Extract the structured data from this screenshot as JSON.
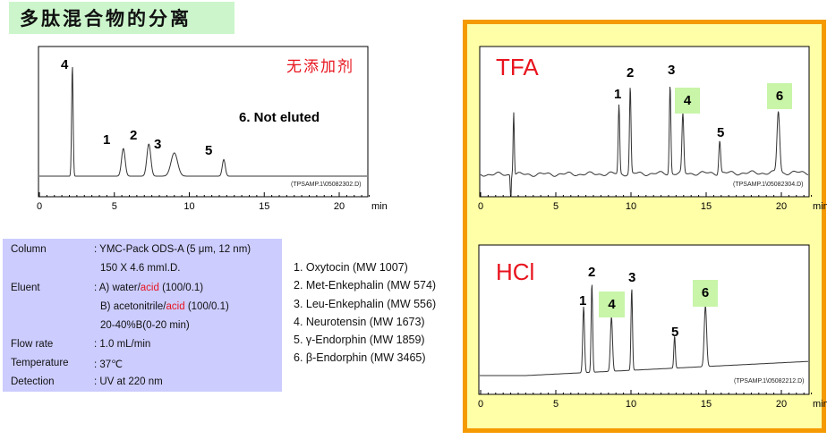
{
  "title": "多肽混合物的分离",
  "colors": {
    "title_bg": "#ccf5cc",
    "frame_orange": "#f59a00",
    "panel_yellow": "#ffffa8",
    "params_bg": "#ccccff",
    "red": "#e8141e",
    "highlight_green": "#c8f5a8"
  },
  "chart_data": [
    {
      "type": "line",
      "label": "无添加剂",
      "note": "6. Not eluted",
      "file": "(TPSAMP.1\\05082302.D)",
      "xlabel": "min",
      "xlim": [
        0,
        22
      ],
      "xticks": [
        "0",
        "5",
        "10",
        "15",
        "20"
      ],
      "grid": false,
      "peaks": [
        {
          "label": "4",
          "rt": 2.2,
          "height": 100
        },
        {
          "label": "1",
          "rt": 5.6,
          "height": 25
        },
        {
          "label": "2",
          "rt": 7.3,
          "height": 29
        },
        {
          "label": "3",
          "rt": 9.0,
          "height": 21
        },
        {
          "label": "5",
          "rt": 12.3,
          "height": 15
        }
      ]
    },
    {
      "type": "line",
      "label": "TFA",
      "file": "(TPSAMP.1\\05082304.D)",
      "xlabel": "min",
      "xlim": [
        0,
        22
      ],
      "xticks": [
        "0",
        "5",
        "10",
        "15",
        "20"
      ],
      "grid": false,
      "peaks": [
        {
          "label": "",
          "rt": 2.2,
          "height": 71
        },
        {
          "label": "1",
          "rt": 9.2,
          "height": 77
        },
        {
          "label": "2",
          "rt": 9.95,
          "height": 97
        },
        {
          "label": "3",
          "rt": 12.6,
          "height": 100
        },
        {
          "label": "4",
          "rt": 13.45,
          "height": 66,
          "highlight": true
        },
        {
          "label": "5",
          "rt": 15.9,
          "height": 37
        },
        {
          "label": "6",
          "rt": 19.8,
          "height": 69,
          "highlight": true
        }
      ]
    },
    {
      "type": "line",
      "label": "HCl",
      "file": "(TPSAMP.1\\05082212.D)",
      "xlabel": "min",
      "xlim": [
        0,
        22
      ],
      "xticks": [
        "0",
        "5",
        "10",
        "15",
        "20"
      ],
      "grid": false,
      "peaks": [
        {
          "label": "1",
          "rt": 6.85,
          "height": 74
        },
        {
          "label": "2",
          "rt": 7.4,
          "height": 100
        },
        {
          "label": "4",
          "rt": 8.7,
          "height": 61,
          "highlight": true
        },
        {
          "label": "3",
          "rt": 10.05,
          "height": 92
        },
        {
          "label": "5",
          "rt": 12.9,
          "height": 36
        },
        {
          "label": "6",
          "rt": 14.95,
          "height": 68,
          "highlight": true
        }
      ]
    }
  ],
  "params": {
    "column_label": "Column",
    "column_value": ": YMC-Pack ODS-A (5 μm, 12 nm)",
    "column_value2": "150 X 4.6  mmI.D.",
    "eluent_label": "Eluent",
    "eluent_a_pre": ": A) water/",
    "eluent_a_acid": "acid",
    "eluent_a_post": " (100/0.1)",
    "eluent_b_pre": "B) acetonitrile/",
    "eluent_b_acid": "acid",
    "eluent_b_post": " (100/0.1)",
    "gradient": "20-40%B(0-20 min)",
    "flow_label": "Flow rate",
    "flow_value": ": 1.0 mL/min",
    "temp_label": "Temperature",
    "temp_value": ": 37℃",
    "det_label": "Detection",
    "det_value": ": UV at 220 nm"
  },
  "peak_list": [
    "1. Oxytocin (MW 1007)",
    "2. Met-Enkephalin (MW  574)",
    "3. Leu-Enkephalin (MW 556)",
    "4. Neurotensin (MW 1673)",
    "5. γ-Endorphin (MW 1859)",
    "6. β-Endorphin (MW 3465)"
  ]
}
